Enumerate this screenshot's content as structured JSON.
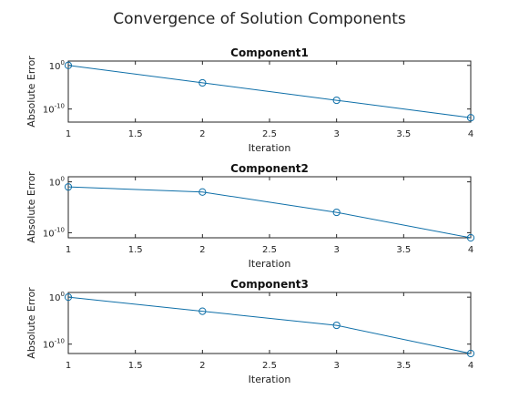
{
  "figure_title": "Convergence of Solution Components",
  "colors": {
    "line": "#0e6fa8",
    "axis": "#262626",
    "text": "#222222"
  },
  "chart_data": [
    {
      "type": "line",
      "title": "Component1",
      "xlabel": "Iteration",
      "ylabel": "Absolute Error",
      "yscale": "log",
      "x": [
        1,
        2,
        3,
        4
      ],
      "y": [
        1,
        0.0001,
        1e-08,
        1e-12
      ],
      "xlim": [
        1,
        4
      ],
      "ylim": [
        1e-13,
        10
      ],
      "xticks": [
        1,
        1.5,
        2,
        2.5,
        3,
        3.5,
        4
      ],
      "xtick_labels": [
        "1",
        "1.5",
        "2",
        "2.5",
        "3",
        "3.5",
        "4"
      ],
      "yticks_exp": [
        0,
        -10
      ],
      "marker": "circle",
      "grid": false
    },
    {
      "type": "line",
      "title": "Component2",
      "xlabel": "Iteration",
      "ylabel": "Absolute Error",
      "yscale": "log",
      "x": [
        1,
        2,
        3,
        4
      ],
      "y": [
        0.1,
        0.01,
        1e-06,
        1e-11
      ],
      "xlim": [
        1,
        4
      ],
      "ylim": [
        1e-11,
        10
      ],
      "xticks": [
        1,
        1.5,
        2,
        2.5,
        3,
        3.5,
        4
      ],
      "xtick_labels": [
        "1",
        "1.5",
        "2",
        "2.5",
        "3",
        "3.5",
        "4"
      ],
      "yticks_exp": [
        0,
        -10
      ],
      "marker": "circle",
      "grid": false
    },
    {
      "type": "line",
      "title": "Component3",
      "xlabel": "Iteration",
      "ylabel": "Absolute Error",
      "yscale": "log",
      "x": [
        1,
        2,
        3,
        4
      ],
      "y": [
        1,
        0.001,
        1e-06,
        1e-12
      ],
      "xlim": [
        1,
        4
      ],
      "ylim": [
        1e-12,
        10
      ],
      "xticks": [
        1,
        1.5,
        2,
        2.5,
        3,
        3.5,
        4
      ],
      "xtick_labels": [
        "1",
        "1.5",
        "2",
        "2.5",
        "3",
        "3.5",
        "4"
      ],
      "yticks_exp": [
        0,
        -10
      ],
      "marker": "circle",
      "grid": false
    }
  ]
}
